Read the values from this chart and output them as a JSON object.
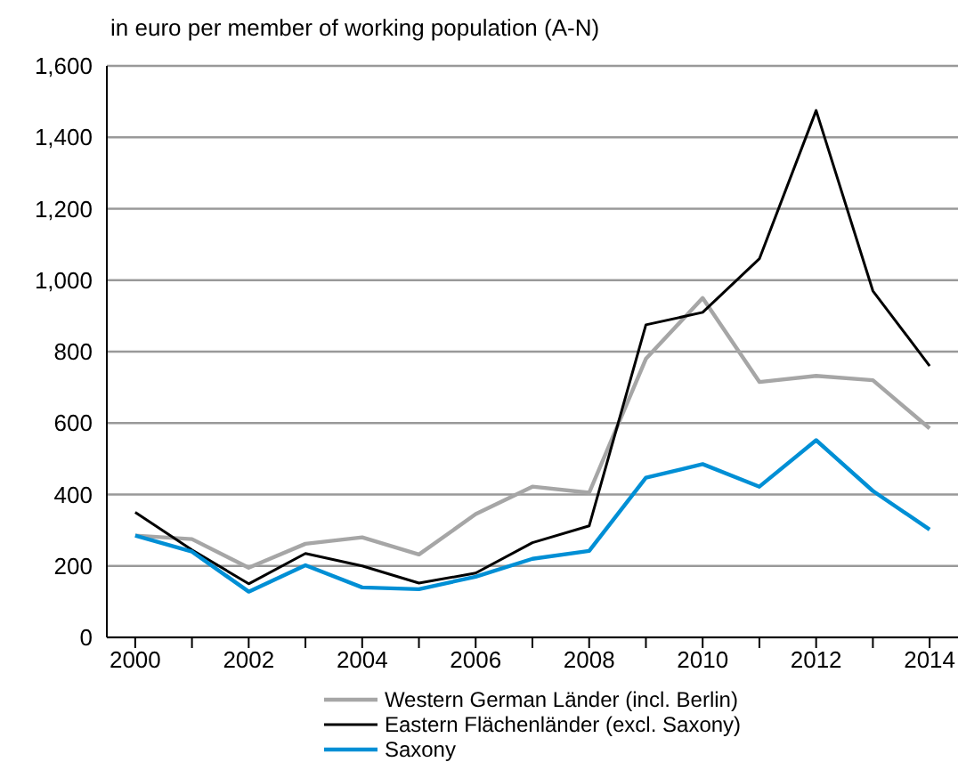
{
  "chart_data": {
    "type": "line",
    "title": "in euro per member of working population (A-N)",
    "x": [
      2000,
      2001,
      2002,
      2003,
      2004,
      2005,
      2006,
      2007,
      2008,
      2009,
      2010,
      2011,
      2012,
      2013,
      2014
    ],
    "series": [
      {
        "name": "Western German Länder (incl. Berlin)",
        "color": "#a6a6a6",
        "values": [
          285,
          275,
          195,
          262,
          280,
          232,
          345,
          422,
          405,
          780,
          950,
          715,
          732,
          720,
          585
        ]
      },
      {
        "name": "Eastern Flächenländer (excl. Saxony)",
        "color": "#000000",
        "values": [
          350,
          245,
          150,
          235,
          200,
          152,
          180,
          265,
          312,
          875,
          910,
          1060,
          1475,
          970,
          760
        ]
      },
      {
        "name": "Saxony",
        "color": "#008fd5",
        "values": [
          285,
          240,
          128,
          202,
          140,
          135,
          170,
          220,
          242,
          447,
          485,
          422,
          552,
          410,
          302
        ]
      }
    ],
    "xlim": [
      1999.5,
      2014.5
    ],
    "xticks": [
      2000,
      {
        "value": 2001,
        "label": null
      },
      2002,
      {
        "value": 2003,
        "label": null
      },
      2004,
      {
        "value": 2005,
        "label": null
      },
      2006,
      {
        "value": 2007,
        "label": null
      },
      2008,
      {
        "value": 2009,
        "label": null
      },
      2010,
      {
        "value": 2011,
        "label": null
      },
      2012,
      {
        "value": 2013,
        "label": null
      },
      2014
    ],
    "ylim": [
      0,
      1600
    ],
    "yticks": [
      0,
      200,
      400,
      600,
      800,
      {
        "value": 1000,
        "label": "1,000"
      },
      {
        "value": 1200,
        "label": "1,200"
      },
      {
        "value": 1400,
        "label": "1,400"
      },
      {
        "value": 1600,
        "label": "1,600"
      }
    ],
    "grid": "y",
    "legend": "bottom",
    "marker": "none",
    "line_style": "solid"
  }
}
